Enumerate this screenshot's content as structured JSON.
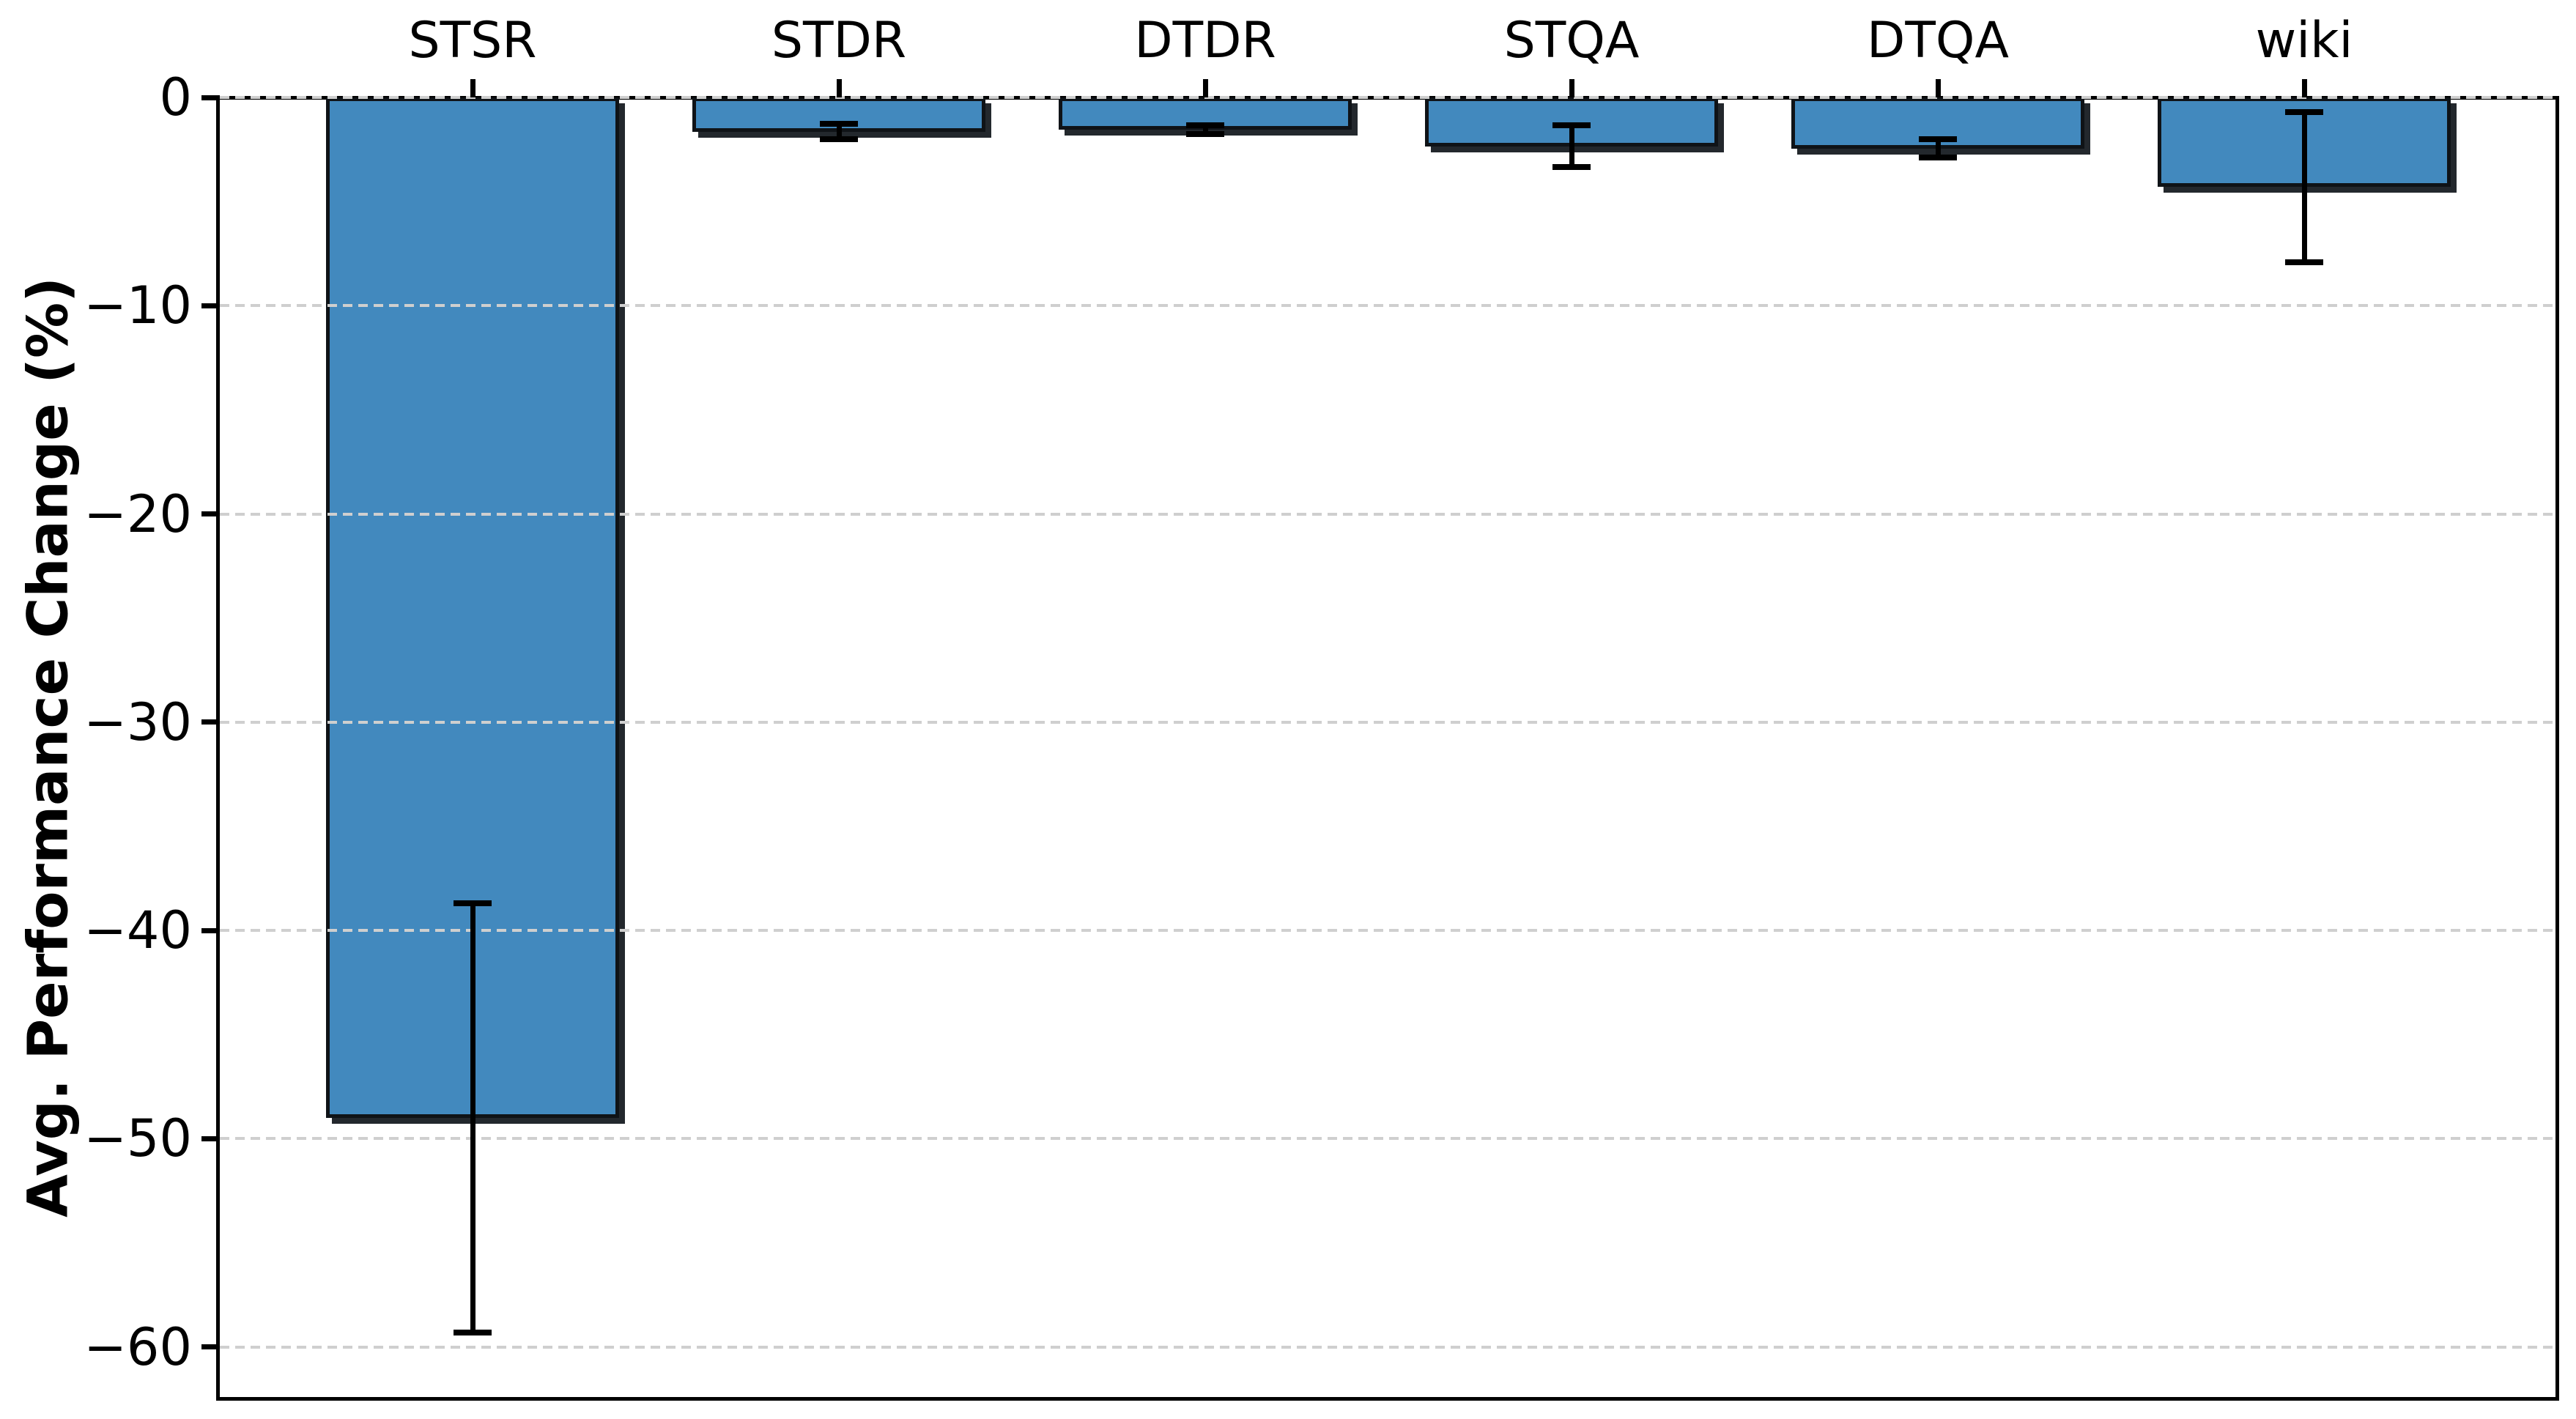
{
  "chart_data": {
    "type": "bar",
    "title": "",
    "xlabel": "",
    "ylabel": "Avg. Performance Change (%)",
    "categories": [
      "STSR",
      "STDR",
      "DTDR",
      "STQA",
      "DTQA",
      "wiki"
    ],
    "values": [
      -49.0,
      -1.65,
      -1.55,
      -2.35,
      -2.45,
      -4.3
    ],
    "error_bars": [
      10.3,
      0.37,
      0.21,
      1.0,
      0.44,
      3.6
    ],
    "ylim": [
      -62.4,
      0
    ],
    "yticks": [
      0,
      -10,
      -20,
      -30,
      -40,
      -50,
      -60
    ],
    "ytick_labels": [
      "0",
      "−10",
      "−20",
      "−30",
      "−40",
      "−50",
      "−60"
    ],
    "x_axis_labels_position": "top",
    "grid": "horizontal-dashed",
    "legend": "none",
    "bar_color": "#4289BE",
    "bar_edge_color": "#0f1317",
    "grid_color": "#cfcfcf",
    "error_bar_color": "#000000"
  }
}
